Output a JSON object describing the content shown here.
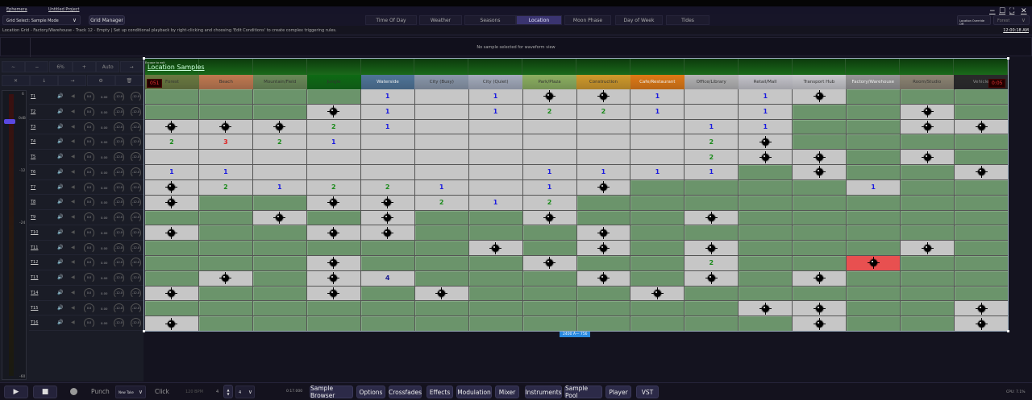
{
  "app": {
    "name": "Ephemera",
    "project": "Untitled Project"
  },
  "toolbar": {
    "grid_select": "Grid Select: Sample Mode",
    "grid_manager": "Grid Manager",
    "location_override": "Location Override Off",
    "location_select": "Forest"
  },
  "tabs": [
    {
      "label": "Time Of Day"
    },
    {
      "label": "Weather"
    },
    {
      "label": "Seasons"
    },
    {
      "label": "Location",
      "active": true
    },
    {
      "label": "Moon Phase"
    },
    {
      "label": "Day of Week"
    },
    {
      "label": "Tides"
    }
  ],
  "status": {
    "text": "Location Grid - Factory/Warehouse - Track 12 - Empty | Set up conditional playback by right-clicking and choosing 'Edit Conditions' to create complex triggering rules.",
    "time": "12:00:18 AM"
  },
  "waveform": {
    "message": "No sample selected for waveform view"
  },
  "left_controls": {
    "row1": [
      "∼",
      "−",
      "6%",
      "+",
      "Auto",
      "→"
    ],
    "row2": [
      "✕",
      "↓",
      "→",
      "⚙",
      "🗑"
    ]
  },
  "fader": {
    "scale": [
      "6",
      "0dB",
      "-12",
      "-24",
      "-60"
    ],
    "level_db": 0
  },
  "tracks": {
    "labels": [
      "T1",
      "T2",
      "T3",
      "T4",
      "T5",
      "T6",
      "T7",
      "T8",
      "T9",
      "T10",
      "T11",
      "T12",
      "T13",
      "T14",
      "T15",
      "T16"
    ],
    "pan": "0.0",
    "value": "0.00",
    "knob1": "-12.0",
    "knob2": "-12.0"
  },
  "grid": {
    "title": "Location Samples",
    "escape_hint": "Escape to exit",
    "counter_left": "051",
    "counter_right": "0:05",
    "size_label": "2400 Ã— 756",
    "columns": [
      {
        "label": "Forest",
        "color": "#6a7a40"
      },
      {
        "label": "Beach",
        "color": "#c07a50"
      },
      {
        "label": "Mountain/Field",
        "color": "#6a8a58"
      },
      {
        "label": "Jungle",
        "color": "#0e6a14"
      },
      {
        "label": "Waterside",
        "color": "#4f7598"
      },
      {
        "label": "City (Busy)",
        "color": "#8a98aa"
      },
      {
        "label": "City (Quiet)",
        "color": "#a4acbc"
      },
      {
        "label": "Park/Plaza",
        "color": "#8cb060"
      },
      {
        "label": "Construction",
        "color": "#d09a2a"
      },
      {
        "label": "Cafe/Restaurant",
        "color": "#e07a14"
      },
      {
        "label": "Office/Library",
        "color": "#b4b4b4"
      },
      {
        "label": "Retail/Mall",
        "color": "#c4c4ca"
      },
      {
        "label": "Transport Hub",
        "color": "#c8c8cc"
      },
      {
        "label": "Factory/Warehouse",
        "color": "#969696"
      },
      {
        "label": "Room/Studio",
        "color": "#8c8472"
      },
      {
        "label": "Vehicle",
        "color": "#2a2a2a"
      }
    ],
    "legend": {
      "G": "covered",
      "E": "revealed-empty",
      "M": "mine",
      "X": "selected-mine"
    },
    "number_colors": {
      "1": "#1a1ae0",
      "2": "#1a8a1a",
      "3": "#e02020",
      "4": "#1a1a90"
    },
    "rows": [
      [
        "G",
        "G",
        "G",
        "G",
        "1",
        "E",
        "1",
        "M",
        "M",
        "1",
        "E",
        "1",
        "M",
        "G",
        "G",
        "G"
      ],
      [
        "G",
        "G",
        "G",
        "M",
        "1",
        "E",
        "1",
        "2",
        "2",
        "1",
        "E",
        "1",
        "G",
        "G",
        "M",
        "G"
      ],
      [
        "M",
        "M",
        "M",
        "2",
        "1",
        "E",
        "E",
        "E",
        "E",
        "E",
        "1",
        "1",
        "G",
        "G",
        "M",
        "M"
      ],
      [
        "2",
        "3",
        "2",
        "1",
        "E",
        "E",
        "E",
        "E",
        "E",
        "E",
        "2",
        "M",
        "G",
        "G",
        "G",
        "G"
      ],
      [
        "E",
        "E",
        "E",
        "E",
        "E",
        "E",
        "E",
        "E",
        "E",
        "E",
        "2",
        "M",
        "M",
        "G",
        "M",
        "G"
      ],
      [
        "1",
        "1",
        "E",
        "E",
        "E",
        "E",
        "E",
        "1",
        "1",
        "1",
        "1",
        "G",
        "M",
        "G",
        "G",
        "M"
      ],
      [
        "M",
        "2",
        "1",
        "2",
        "2",
        "1",
        "E",
        "1",
        "M",
        "G",
        "G",
        "G",
        "G",
        "1",
        "G",
        "G"
      ],
      [
        "M",
        "G",
        "G",
        "M",
        "M",
        "2",
        "1",
        "2",
        "G",
        "G",
        "G",
        "G",
        "G",
        "G",
        "G",
        "G"
      ],
      [
        "G",
        "G",
        "M",
        "G",
        "M",
        "G",
        "G",
        "M",
        "G",
        "G",
        "M",
        "G",
        "G",
        "G",
        "G",
        "G"
      ],
      [
        "M",
        "G",
        "G",
        "M",
        "M",
        "G",
        "G",
        "G",
        "M",
        "G",
        "G",
        "G",
        "G",
        "G",
        "G",
        "G"
      ],
      [
        "G",
        "G",
        "G",
        "G",
        "G",
        "G",
        "M",
        "G",
        "M",
        "G",
        "M",
        "G",
        "G",
        "G",
        "M",
        "G"
      ],
      [
        "G",
        "G",
        "G",
        "M",
        "G",
        "G",
        "G",
        "M",
        "G",
        "G",
        "2",
        "G",
        "G",
        "X",
        "G",
        "G"
      ],
      [
        "G",
        "M",
        "G",
        "M",
        "4",
        "G",
        "G",
        "G",
        "M",
        "G",
        "M",
        "G",
        "M",
        "G",
        "G",
        "G"
      ],
      [
        "M",
        "G",
        "G",
        "M",
        "G",
        "M",
        "G",
        "G",
        "G",
        "M",
        "G",
        "G",
        "G",
        "G",
        "G",
        "G"
      ],
      [
        "G",
        "G",
        "G",
        "G",
        "G",
        "G",
        "G",
        "G",
        "G",
        "G",
        "G",
        "M",
        "M",
        "G",
        "G",
        "M"
      ],
      [
        "M",
        "G",
        "G",
        "G",
        "G",
        "G",
        "G",
        "G",
        "G",
        "G",
        "G",
        "G",
        "M",
        "G",
        "G",
        "M"
      ]
    ]
  },
  "transport": {
    "punch": "Punch",
    "take": "New Take",
    "click": "Click",
    "bpm": "120 BPM",
    "sig_top": "4",
    "sig_bottom": "4",
    "time": "0:17.000"
  },
  "panels": [
    "Sample Browser",
    "Options",
    "Crossfades",
    "Effects",
    "Modulation",
    "Mixer",
    "Instruments",
    "Sample Pool",
    "Player",
    "VST"
  ],
  "cpu": "CPU: 7.1%"
}
